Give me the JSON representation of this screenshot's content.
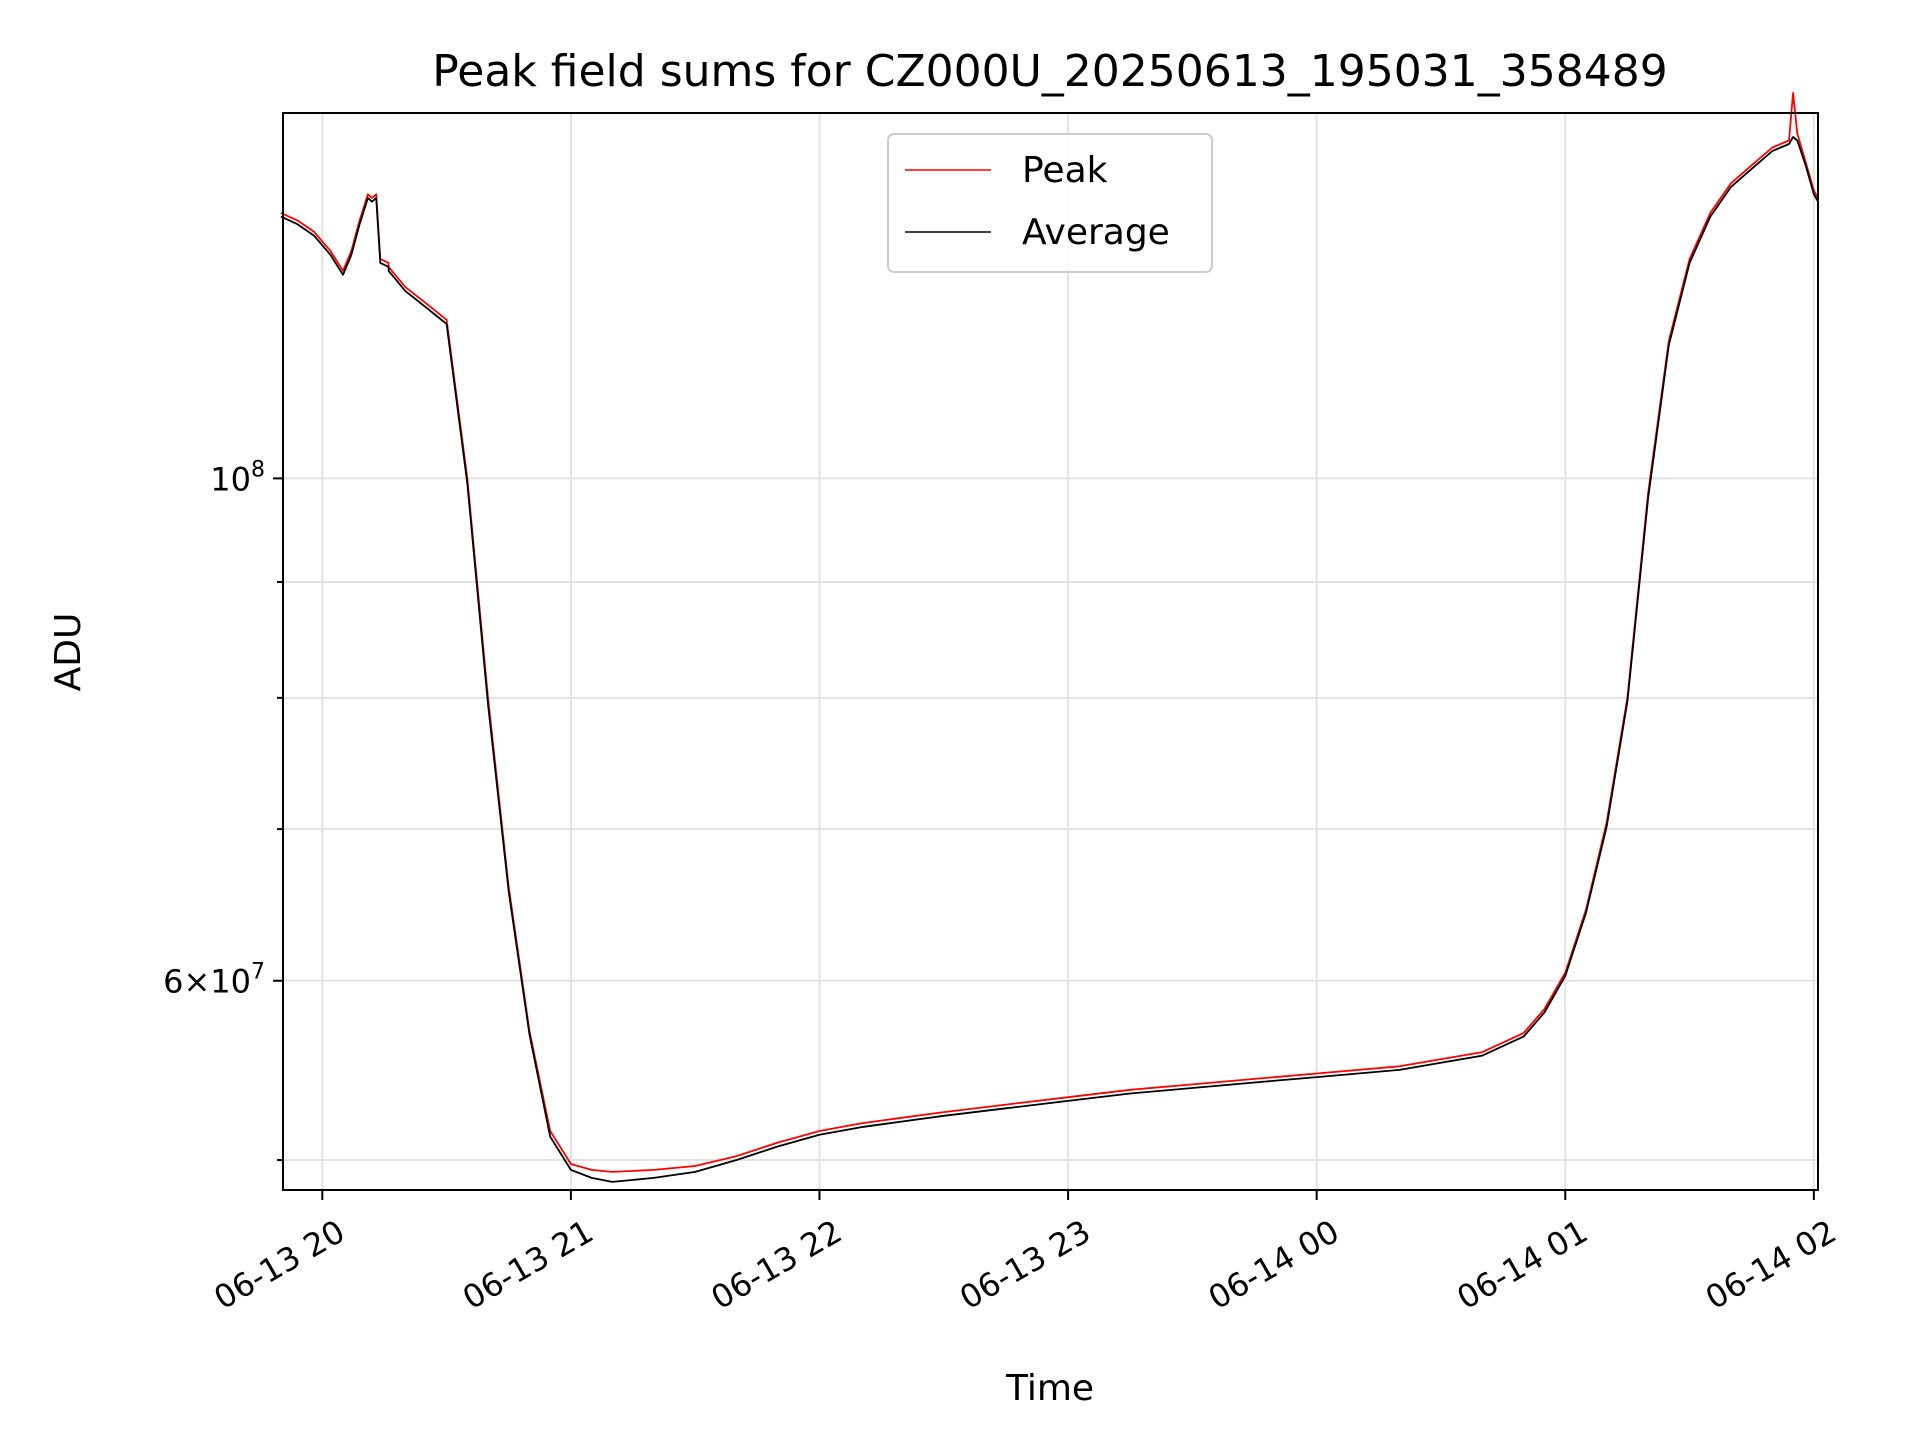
{
  "chart_data": {
    "type": "line",
    "title": "Peak field sums for CZ000U_20250613_195031_358489",
    "xlabel": "Time",
    "ylabel": "ADU",
    "y_scale": "log",
    "ylim": [
      48500000,
      145000000
    ],
    "xlim": [
      "2025-06-13 19:50:31",
      "2025-06-14 02:01:00"
    ],
    "grid": true,
    "legend_position": "top-center",
    "x_ticks": [
      {
        "t": "2025-06-13 20:00",
        "label": "06-13 20"
      },
      {
        "t": "2025-06-13 21:00",
        "label": "06-13 21"
      },
      {
        "t": "2025-06-13 22:00",
        "label": "06-13 22"
      },
      {
        "t": "2025-06-13 23:00",
        "label": "06-13 23"
      },
      {
        "t": "2025-06-14 00:00",
        "label": "06-14 00"
      },
      {
        "t": "2025-06-14 01:00",
        "label": "06-14 01"
      },
      {
        "t": "2025-06-14 02:00",
        "label": "06-14 02"
      }
    ],
    "y_ticks": [
      {
        "value": 100000000,
        "base": "10",
        "exp": "8"
      },
      {
        "value": 60000000,
        "mant": "6",
        "base": "10",
        "exp": "7"
      }
    ],
    "y_minor_ticks": [
      50000000,
      70000000,
      80000000,
      90000000
    ],
    "series": [
      {
        "name": "Peak",
        "color": "#ff0000",
        "x": [
          "2025-06-13 19:50",
          "2025-06-13 19:54",
          "2025-06-13 19:58",
          "2025-06-13 20:02",
          "2025-06-13 20:05",
          "2025-06-13 20:07",
          "2025-06-13 20:09",
          "2025-06-13 20:11",
          "2025-06-13 20:12",
          "2025-06-13 20:13",
          "2025-06-13 20:14",
          "2025-06-13 20:16",
          "2025-06-13 20:16",
          "2025-06-13 20:20",
          "2025-06-13 20:25",
          "2025-06-13 20:30",
          "2025-06-13 20:35",
          "2025-06-13 20:40",
          "2025-06-13 20:45",
          "2025-06-13 20:50",
          "2025-06-13 20:55",
          "2025-06-13 21:00",
          "2025-06-13 21:05",
          "2025-06-13 21:10",
          "2025-06-13 21:20",
          "2025-06-13 21:30",
          "2025-06-13 21:40",
          "2025-06-13 21:50",
          "2025-06-13 22:00",
          "2025-06-13 22:10",
          "2025-06-13 22:20",
          "2025-06-13 22:30",
          "2025-06-13 22:45",
          "2025-06-13 23:00",
          "2025-06-13 23:15",
          "2025-06-13 23:30",
          "2025-06-13 23:45",
          "2025-06-14 00:00",
          "2025-06-14 00:20",
          "2025-06-14 00:40",
          "2025-06-14 00:50",
          "2025-06-14 00:55",
          "2025-06-14 01:00",
          "2025-06-14 01:05",
          "2025-06-14 01:10",
          "2025-06-14 01:15",
          "2025-06-14 01:20",
          "2025-06-14 01:25",
          "2025-06-14 01:30",
          "2025-06-14 01:35",
          "2025-06-14 01:40",
          "2025-06-14 01:45",
          "2025-06-14 01:50",
          "2025-06-14 01:54",
          "2025-06-14 01:55",
          "2025-06-14 01:56",
          "2025-06-14 01:58",
          "2025-06-14 02:00",
          "2025-06-14 02:01"
        ],
        "values": [
          131000000,
          130000000,
          128500000,
          126000000,
          123500000,
          126000000,
          130000000,
          133500000,
          133000000,
          133500000,
          125000000,
          124500000,
          124000000,
          121500000,
          119500000,
          117500000,
          100000000,
          80000000,
          66000000,
          57000000,
          51500000,
          49800000,
          49500000,
          49400000,
          49500000,
          49700000,
          50200000,
          50900000,
          51500000,
          51900000,
          52200000,
          52500000,
          52900000,
          53300000,
          53700000,
          54000000,
          54300000,
          54600000,
          55000000,
          55800000,
          56900000,
          58300000,
          60500000,
          64500000,
          70500000,
          80000000,
          98500000,
          115000000,
          125000000,
          131000000,
          135000000,
          137500000,
          140000000,
          141000000,
          148000000,
          142000000,
          138000000,
          134000000,
          133000000
        ]
      },
      {
        "name": "Average",
        "color": "#000000",
        "x": [
          "2025-06-13 19:50",
          "2025-06-13 19:54",
          "2025-06-13 19:58",
          "2025-06-13 20:02",
          "2025-06-13 20:05",
          "2025-06-13 20:07",
          "2025-06-13 20:09",
          "2025-06-13 20:11",
          "2025-06-13 20:12",
          "2025-06-13 20:13",
          "2025-06-13 20:14",
          "2025-06-13 20:16",
          "2025-06-13 20:16",
          "2025-06-13 20:20",
          "2025-06-13 20:25",
          "2025-06-13 20:30",
          "2025-06-13 20:35",
          "2025-06-13 20:40",
          "2025-06-13 20:45",
          "2025-06-13 20:50",
          "2025-06-13 20:55",
          "2025-06-13 21:00",
          "2025-06-13 21:05",
          "2025-06-13 21:10",
          "2025-06-13 21:20",
          "2025-06-13 21:30",
          "2025-06-13 21:40",
          "2025-06-13 21:50",
          "2025-06-13 22:00",
          "2025-06-13 22:10",
          "2025-06-13 22:20",
          "2025-06-13 22:30",
          "2025-06-13 22:45",
          "2025-06-13 23:00",
          "2025-06-13 23:15",
          "2025-06-13 23:30",
          "2025-06-13 23:45",
          "2025-06-14 00:00",
          "2025-06-14 00:20",
          "2025-06-14 00:40",
          "2025-06-14 00:50",
          "2025-06-14 00:55",
          "2025-06-14 01:00",
          "2025-06-14 01:05",
          "2025-06-14 01:10",
          "2025-06-14 01:15",
          "2025-06-14 01:20",
          "2025-06-14 01:25",
          "2025-06-14 01:30",
          "2025-06-14 01:35",
          "2025-06-14 01:40",
          "2025-06-14 01:45",
          "2025-06-14 01:50",
          "2025-06-14 01:54",
          "2025-06-14 01:55",
          "2025-06-14 01:56",
          "2025-06-14 01:58",
          "2025-06-14 02:00",
          "2025-06-14 02:01"
        ],
        "values": [
          130500000,
          129500000,
          128000000,
          125500000,
          123000000,
          125500000,
          129500000,
          133000000,
          132500000,
          133000000,
          124500000,
          124000000,
          123500000,
          121000000,
          119000000,
          117000000,
          99500000,
          79500000,
          65700000,
          56800000,
          51200000,
          49500000,
          49100000,
          48900000,
          49100000,
          49400000,
          50000000,
          50700000,
          51300000,
          51700000,
          52000000,
          52300000,
          52700000,
          53100000,
          53500000,
          53800000,
          54100000,
          54400000,
          54800000,
          55600000,
          56700000,
          58100000,
          60300000,
          64300000,
          70200000,
          79700000,
          98000000,
          114500000,
          124500000,
          130500000,
          134500000,
          137000000,
          139500000,
          140500000,
          141500000,
          141000000,
          137500000,
          133500000,
          132500000
        ]
      }
    ]
  }
}
